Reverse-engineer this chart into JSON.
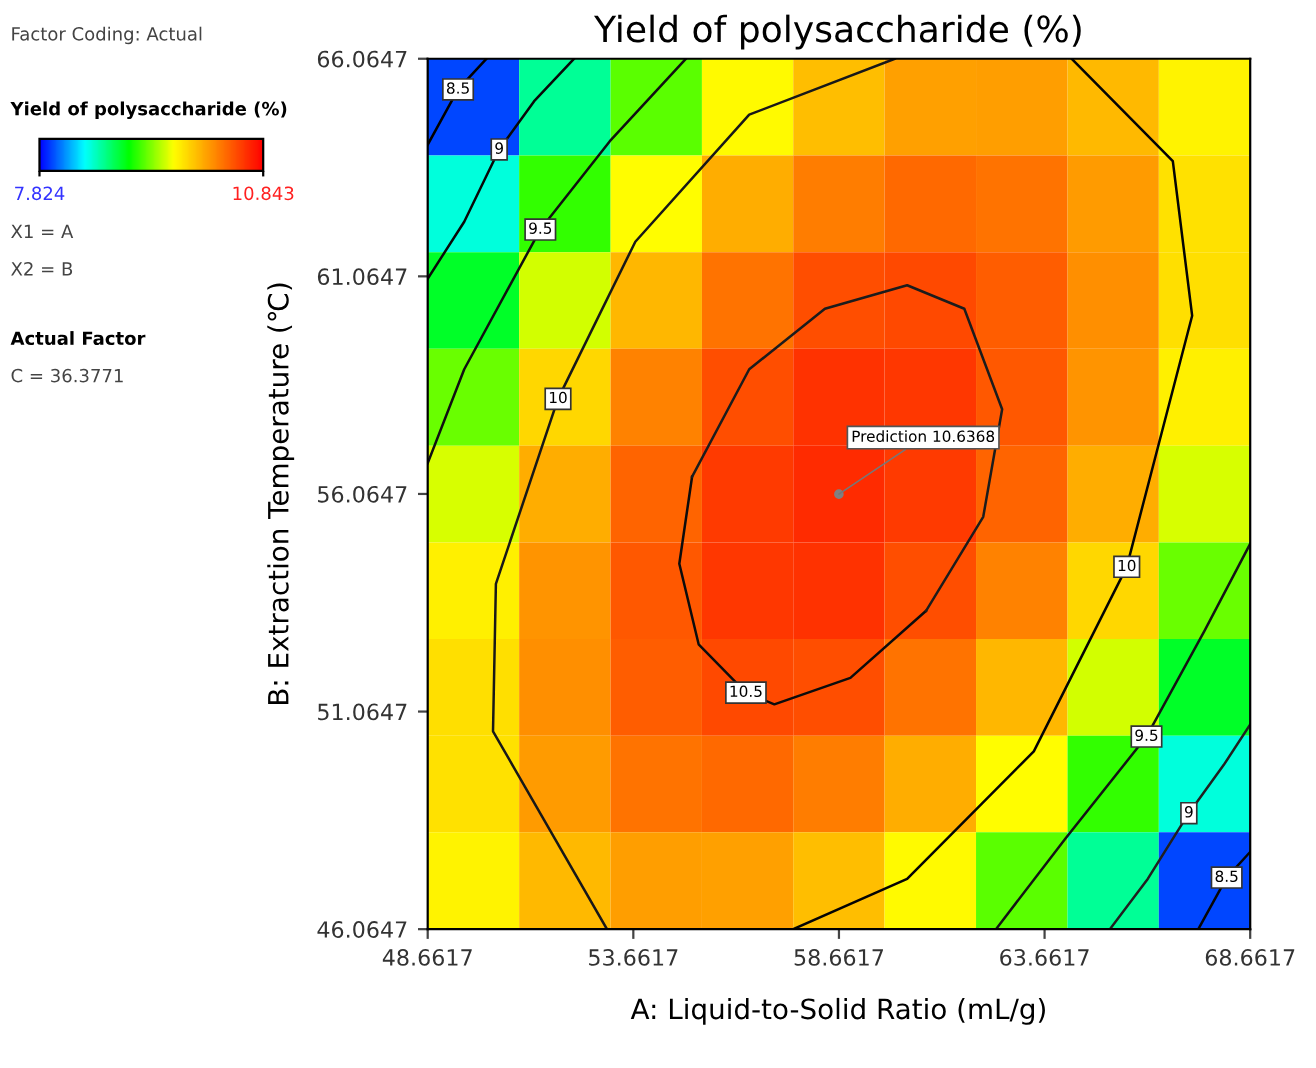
{
  "chart_data": {
    "type": "heatmap",
    "title": "Yield of polysaccharide (%)",
    "xlabel": "A: Liquid-to-Solid Ratio (mL/g)",
    "ylabel": "B: Extraction Temperature (℃)",
    "clabel": "Yield of polysaccharide (%)",
    "clim": [
      7.824,
      10.843
    ],
    "cticks": [
      7.824,
      10.843
    ],
    "x": [
      49.77,
      52.0,
      54.22,
      56.44,
      58.66,
      60.88,
      63.11,
      65.33,
      67.55
    ],
    "y": [
      64.95,
      62.73,
      60.51,
      58.29,
      56.06,
      53.84,
      51.62,
      49.4,
      47.18
    ],
    "cells": [
      [
        7.99,
        8.68,
        9.24,
        9.66,
        9.94,
        10.08,
        10.09,
        9.96,
        9.69
      ],
      [
        8.51,
        9.15,
        9.65,
        10.02,
        10.25,
        10.34,
        10.29,
        10.11,
        9.78
      ],
      [
        8.94,
        9.53,
        9.98,
        10.29,
        10.47,
        10.5,
        10.4,
        10.17,
        9.79
      ],
      [
        9.28,
        9.82,
        10.22,
        10.47,
        10.6,
        10.58,
        10.43,
        10.14,
        9.71
      ],
      [
        9.54,
        10.02,
        10.37,
        10.57,
        10.64,
        10.57,
        10.37,
        10.02,
        9.54
      ],
      [
        9.71,
        10.14,
        10.43,
        10.58,
        10.6,
        10.47,
        10.22,
        9.82,
        9.28
      ],
      [
        9.79,
        10.17,
        10.4,
        10.5,
        10.47,
        10.29,
        9.98,
        9.53,
        8.94
      ],
      [
        9.78,
        10.11,
        10.29,
        10.34,
        10.25,
        10.02,
        9.65,
        9.15,
        8.51
      ],
      [
        9.69,
        9.96,
        10.09,
        10.08,
        9.94,
        9.66,
        9.24,
        8.68,
        7.99
      ]
    ],
    "series": [
      {
        "name": "8.5",
        "type": "line",
        "color": "#000000",
        "x": [
          48.6617,
          49.4,
          50.09
        ],
        "values": [
          64.09,
          65.36,
          66.0647
        ]
      },
      {
        "name": "9",
        "type": "line",
        "color": "#080808",
        "x": [
          48.6617,
          49.55,
          50.4,
          51.25,
          52.22
        ],
        "values": [
          61.01,
          62.32,
          63.98,
          65.09,
          66.0647
        ]
      },
      {
        "name": "9.5",
        "type": "line",
        "color": "#101010",
        "x": [
          48.6617,
          49.55,
          51.4,
          53.09,
          54.94
        ],
        "values": [
          56.77,
          58.93,
          62.14,
          64.17,
          66.0647
        ]
      },
      {
        "name": "10",
        "type": "line",
        "color": "#181818",
        "x": [
          60.02,
          56.48,
          53.71,
          51.83,
          50.32,
          50.25,
          53.02
        ],
        "values": [
          66.0647,
          64.78,
          61.86,
          58.25,
          54.0,
          50.61,
          46.0647
        ]
      },
      {
        "name": "10",
        "type": "line",
        "color": "#040404",
        "x": [
          64.32,
          66.78,
          67.25,
          65.66,
          63.4,
          60.32,
          57.55
        ],
        "values": [
          66.0647,
          63.71,
          60.16,
          54.39,
          50.15,
          47.22,
          46.0647
        ]
      },
      {
        "name": "10.5",
        "type": "line",
        "color": "#0c0c0c",
        "x": [
          55.09,
          54.78,
          55.25,
          56.4,
          57.09,
          58.94,
          60.78
        ],
        "values": [
          56.46,
          54.46,
          52.61,
          51.5,
          51.23,
          51.84,
          53.38
        ]
      },
      {
        "type": "line",
        "color": "#1c1c1c",
        "x": [
          60.78,
          62.17,
          62.63,
          61.71,
          60.32,
          58.32,
          56.48,
          55.09
        ],
        "values": [
          53.38,
          55.54,
          58.01,
          60.32,
          60.86,
          60.32,
          58.93,
          56.46
        ]
      },
      {
        "name": "9.5",
        "type": "line",
        "color": "#141414",
        "x": [
          62.48,
          64.17,
          66.14,
          67.55,
          68.6617
        ],
        "values": [
          46.0647,
          48.15,
          50.49,
          52.92,
          54.92
        ]
      },
      {
        "name": "9",
        "type": "line",
        "color": "#202020",
        "x": [
          65.25,
          66.17,
          67.17,
          68.02,
          68.6617
        ],
        "values": [
          46.0647,
          47.22,
          48.73,
          49.84,
          50.77
        ]
      },
      {
        "name": "8.5",
        "type": "line",
        "color": "#060606",
        "x": [
          67.4,
          68.09,
          68.6617
        ],
        "values": [
          46.0647,
          47.25,
          47.84
        ]
      },
      {
        "type": "scatter",
        "color": "#808080",
        "marker": "circle",
        "x": [
          58.66
        ],
        "values": [
          56.06
        ]
      }
    ],
    "xlim": [
      48.6617,
      68.6617
    ],
    "ylim": [
      46.0647,
      66.0647
    ],
    "xticks": [
      48.6617,
      53.6617,
      58.6617,
      63.6617,
      68.6617
    ],
    "yticks": [
      46.0647,
      51.0647,
      56.0647,
      61.0647,
      66.0647
    ],
    "annotations": [
      "Factor Coding: Actual",
      "X1 = A",
      "X2 = B",
      "Actual Factor",
      "C = 36.3771",
      {
        "text": "Prediction 10.6368",
        "x": 58.66,
        "y": 56.06
      }
    ]
  }
}
